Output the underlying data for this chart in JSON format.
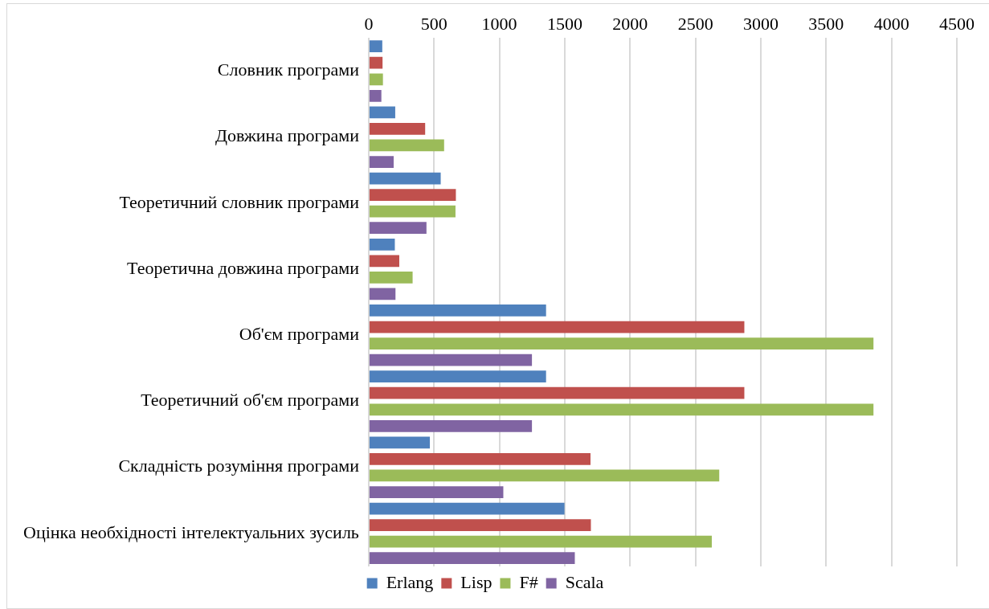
{
  "chart_data": {
    "type": "bar",
    "orientation": "horizontal",
    "categories": [
      "Словник програми",
      "Довжина програми",
      "Теоретичний словник програми",
      "Теоретична довжина програми",
      "Об'єм програми",
      "Теоретичний об'єм програми",
      "Складність розуміння програми",
      "Оцінка необхідності інтелектуальних зусиль"
    ],
    "series": [
      {
        "name": "Erlang",
        "color": "#4f81bd",
        "values": [
          104,
          203,
          551,
          200,
          1357,
          1357,
          468,
          1498
        ]
      },
      {
        "name": "Lisp",
        "color": "#c0504d",
        "values": [
          106,
          432,
          667,
          234,
          2874,
          2874,
          1697,
          1700
        ]
      },
      {
        "name": "F#",
        "color": "#9bbb59",
        "values": [
          109,
          577,
          664,
          336,
          3862,
          3862,
          2682,
          2625
        ]
      },
      {
        "name": "Scala",
        "color": "#8064a2",
        "values": [
          97,
          191,
          442,
          205,
          1249,
          1249,
          1030,
          1577
        ]
      }
    ],
    "xlim": [
      0,
      4500
    ],
    "xticks": [
      0,
      500,
      1000,
      1500,
      2000,
      2500,
      3000,
      3500,
      4000,
      4500
    ],
    "grid": "x",
    "legend": "bottom"
  }
}
